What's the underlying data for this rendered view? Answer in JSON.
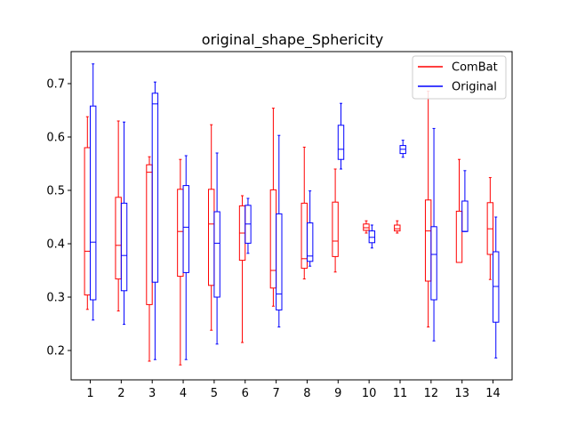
{
  "chart_data": {
    "type": "boxplot",
    "title": "original_shape_Sphericity",
    "xlabel": "",
    "ylabel": "",
    "categories": [
      "1",
      "2",
      "3",
      "4",
      "5",
      "6",
      "7",
      "8",
      "9",
      "10",
      "11",
      "12",
      "13",
      "14"
    ],
    "ylim": [
      0.145,
      0.76
    ],
    "yticks": [
      "0.2",
      "0.3",
      "0.4",
      "0.5",
      "0.6",
      "0.7"
    ],
    "legend_position": "top-right",
    "series": [
      {
        "name": "ComBat",
        "color": "#ff0000",
        "boxes": [
          {
            "min": 0.277,
            "q1": 0.304,
            "median": 0.386,
            "q3": 0.58,
            "max": 0.638
          },
          {
            "min": 0.274,
            "q1": 0.334,
            "median": 0.397,
            "q3": 0.487,
            "max": 0.63
          },
          {
            "min": 0.18,
            "q1": 0.286,
            "median": 0.534,
            "q3": 0.548,
            "max": 0.563
          },
          {
            "min": 0.173,
            "q1": 0.339,
            "median": 0.423,
            "q3": 0.502,
            "max": 0.558
          },
          {
            "min": 0.238,
            "q1": 0.322,
            "median": 0.437,
            "q3": 0.502,
            "max": 0.623
          },
          {
            "min": 0.215,
            "q1": 0.369,
            "median": 0.42,
            "q3": 0.471,
            "max": 0.49
          },
          {
            "min": 0.283,
            "q1": 0.317,
            "median": 0.35,
            "q3": 0.501,
            "max": 0.654
          },
          {
            "min": 0.334,
            "q1": 0.354,
            "median": 0.372,
            "q3": 0.476,
            "max": 0.581
          },
          {
            "min": 0.347,
            "q1": 0.376,
            "median": 0.405,
            "q3": 0.478,
            "max": 0.54
          },
          {
            "min": 0.42,
            "q1": 0.425,
            "median": 0.43,
            "q3": 0.437,
            "max": 0.443
          },
          {
            "min": 0.42,
            "q1": 0.424,
            "median": 0.428,
            "q3": 0.435,
            "max": 0.443
          },
          {
            "min": 0.244,
            "q1": 0.33,
            "median": 0.424,
            "q3": 0.482,
            "max": 0.686
          },
          {
            "min": 0.365,
            "q1": 0.365,
            "median": 0.365,
            "q3": 0.461,
            "max": 0.558
          },
          {
            "min": 0.333,
            "q1": 0.38,
            "median": 0.428,
            "q3": 0.477,
            "max": 0.524
          }
        ]
      },
      {
        "name": "Original",
        "color": "#0000ff",
        "boxes": [
          {
            "min": 0.257,
            "q1": 0.295,
            "median": 0.403,
            "q3": 0.658,
            "max": 0.737
          },
          {
            "min": 0.249,
            "q1": 0.312,
            "median": 0.378,
            "q3": 0.476,
            "max": 0.628
          },
          {
            "min": 0.183,
            "q1": 0.328,
            "median": 0.662,
            "q3": 0.682,
            "max": 0.703
          },
          {
            "min": 0.183,
            "q1": 0.346,
            "median": 0.431,
            "q3": 0.509,
            "max": 0.565
          },
          {
            "min": 0.212,
            "q1": 0.3,
            "median": 0.401,
            "q3": 0.46,
            "max": 0.57
          },
          {
            "min": 0.382,
            "q1": 0.401,
            "median": 0.437,
            "q3": 0.472,
            "max": 0.485
          },
          {
            "min": 0.244,
            "q1": 0.276,
            "median": 0.306,
            "q3": 0.456,
            "max": 0.603
          },
          {
            "min": 0.358,
            "q1": 0.367,
            "median": 0.377,
            "q3": 0.439,
            "max": 0.499
          },
          {
            "min": 0.54,
            "q1": 0.558,
            "median": 0.577,
            "q3": 0.622,
            "max": 0.663
          },
          {
            "min": 0.392,
            "q1": 0.402,
            "median": 0.412,
            "q3": 0.424,
            "max": 0.435
          },
          {
            "min": 0.562,
            "q1": 0.569,
            "median": 0.577,
            "q3": 0.584,
            "max": 0.594
          },
          {
            "min": 0.218,
            "q1": 0.295,
            "median": 0.38,
            "q3": 0.432,
            "max": 0.616
          },
          {
            "min": 0.423,
            "q1": 0.423,
            "median": 0.423,
            "q3": 0.48,
            "max": 0.537
          },
          {
            "min": 0.186,
            "q1": 0.253,
            "median": 0.32,
            "q3": 0.385,
            "max": 0.45
          }
        ]
      }
    ]
  }
}
